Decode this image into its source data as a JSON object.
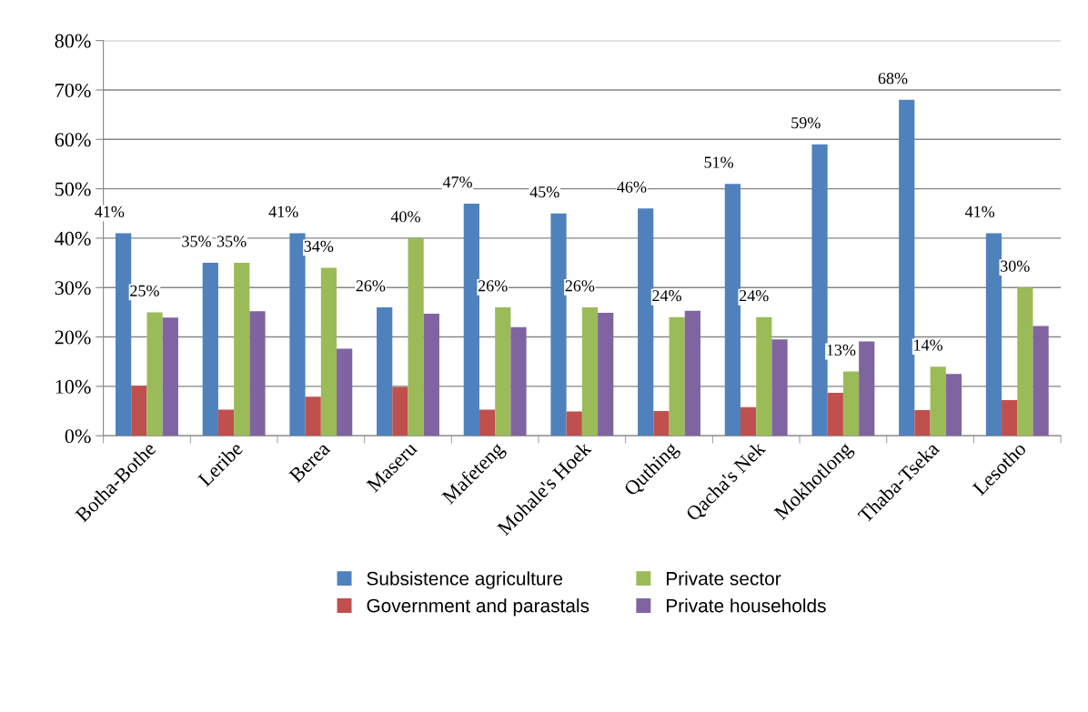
{
  "chart_data": {
    "type": "bar",
    "categories": [
      "Botha-Bothe",
      "Leribe",
      "Berea",
      "Maseru",
      "Mafeteng",
      "Mohale's Hoek",
      "Quthing",
      "Qacha's Nek",
      "Mokhotlong",
      "Thaba-Tseka",
      "Lesotho"
    ],
    "series": [
      {
        "name": "Subsistence agriculture",
        "color": "#4f81bd",
        "values": [
          41,
          35,
          41,
          26,
          47,
          45,
          46,
          51,
          59,
          68,
          41
        ],
        "value_labels": [
          "41%",
          "35%",
          "41%",
          "26%",
          "47%",
          "45%",
          "46%",
          "51%",
          "59%",
          "68%",
          "41%"
        ]
      },
      {
        "name": "Government and parastals",
        "color": "#c0504d",
        "values": [
          10.1,
          5.3,
          7.9,
          9.9,
          5.3,
          4.9,
          5.0,
          5.8,
          8.7,
          5.2,
          7.2
        ]
      },
      {
        "name": "Private sector",
        "color": "#9bbb59",
        "values": [
          25,
          35,
          34,
          40,
          26,
          26,
          24,
          24,
          13,
          14,
          30
        ],
        "value_labels": [
          "25%",
          "35%",
          "34%",
          "40%",
          "26%",
          "26%",
          "24%",
          "24%",
          "13%",
          "14%",
          "30%"
        ]
      },
      {
        "name": "Private households",
        "color": "#8064a2",
        "values": [
          23.9,
          25.2,
          17.6,
          24.7,
          22.0,
          24.9,
          25.3,
          19.5,
          19.1,
          12.5,
          22.2
        ]
      }
    ],
    "ylim": [
      0,
      80
    ],
    "yticks": [
      {
        "value": 0,
        "label": "0%"
      },
      {
        "value": 10,
        "label": "10%"
      },
      {
        "value": 20,
        "label": "20%"
      },
      {
        "value": 30,
        "label": "30%"
      },
      {
        "value": 40,
        "label": "40%"
      },
      {
        "value": 50,
        "label": "50%"
      },
      {
        "value": 60,
        "label": "60%"
      },
      {
        "value": 70,
        "label": "70%"
      },
      {
        "value": 80,
        "label": "80%"
      }
    ],
    "grid": "y",
    "legend": "bottom"
  }
}
